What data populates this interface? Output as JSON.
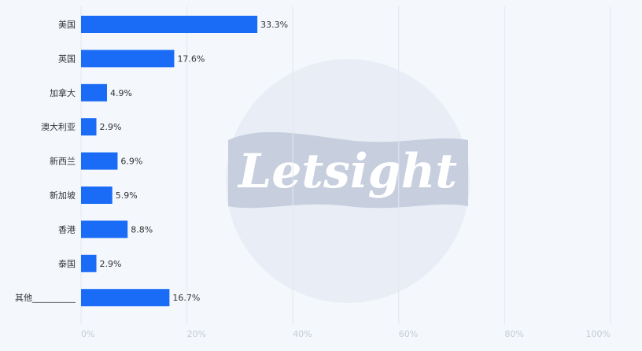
{
  "chart_data": {
    "type": "bar",
    "orientation": "horizontal",
    "categories": [
      "美国",
      "英国",
      "加拿大",
      "澳大利亚",
      "新西兰",
      "新加坡",
      "香港",
      "泰国",
      "其他__________"
    ],
    "values": [
      33.3,
      17.6,
      4.9,
      2.9,
      6.9,
      5.9,
      8.8,
      2.9,
      16.7
    ],
    "value_labels": [
      "33.3%",
      "17.6%",
      "4.9%",
      "2.9%",
      "6.9%",
      "5.9%",
      "8.8%",
      "2.9%",
      "16.7%"
    ],
    "x_ticks": [
      "0%",
      "20%",
      "40%",
      "60%",
      "80%",
      "100%"
    ],
    "xlim": [
      0,
      100
    ],
    "unit": "%",
    "grid": "vertical",
    "legend": "none",
    "bar_color": "#1a6bf5"
  },
  "watermark": {
    "text": "Letsight",
    "circle_color": "#e9eef6",
    "band_color": "#c7cfdf",
    "text_color": "#ffffff"
  }
}
